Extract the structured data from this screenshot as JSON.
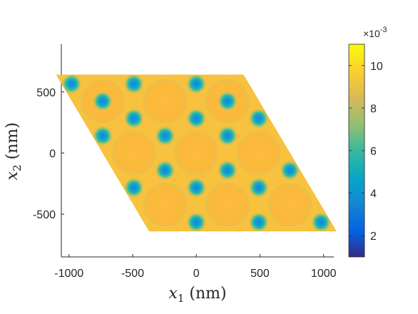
{
  "chart_data": {
    "type": "heatmap",
    "domain_shape": "rhombus (hexagonal unit cell)",
    "colormap": "parula",
    "grid": false,
    "x": {
      "label_var": "x",
      "label_sub": "1",
      "label_unit": "(nm)",
      "lim": [
        -1060,
        1080
      ],
      "ticks": [
        -1000,
        -500,
        0,
        500,
        1000
      ],
      "tick_labels": [
        "-1000",
        "-500",
        "0",
        "500",
        "1000"
      ]
    },
    "y": {
      "label_var": "x",
      "label_sub": "2",
      "label_unit": "(nm)",
      "lim": [
        -850,
        890
      ],
      "ticks": [
        -500,
        0,
        500
      ],
      "tick_labels": [
        "-500",
        "0",
        "500"
      ]
    },
    "colorbar": {
      "location": "right",
      "lim": [
        0.001,
        0.011
      ],
      "ticks": [
        0.002,
        0.004,
        0.006,
        0.008,
        0.01
      ],
      "tick_labels": [
        "2",
        "4",
        "6",
        "8",
        "10"
      ],
      "exponent_label": "×10",
      "exponent_power": "-3"
    },
    "field": {
      "background_value": 0.0098,
      "circle_value": 0.0093,
      "circle_radius": 170,
      "lattice_a1": [
        490,
        0
      ],
      "lattice_a2": [
        245,
        424
      ],
      "vertices": [
        [
          -1100,
          640
        ],
        [
          370,
          640
        ],
        [
          1100,
          -640
        ],
        [
          -370,
          -640
        ]
      ],
      "circle_centers": [
        [
          -735,
          424
        ],
        [
          -245,
          424
        ],
        [
          245,
          424
        ],
        [
          -490,
          0
        ],
        [
          0,
          0
        ],
        [
          490,
          0
        ],
        [
          -245,
          -424
        ],
        [
          245,
          -424
        ],
        [
          735,
          -424
        ]
      ],
      "hotspots": [
        {
          "x": -980,
          "y": 566,
          "value": 0.0045
        },
        {
          "x": -490,
          "y": 566,
          "value": 0.0045
        },
        {
          "x": 0,
          "y": 566,
          "value": 0.0045
        },
        {
          "x": 490,
          "y": 566,
          "value": 0.0045
        },
        {
          "x": -490,
          "y": 283,
          "value": 0.0045
        },
        {
          "x": 0,
          "y": 283,
          "value": 0.0045
        },
        {
          "x": 490,
          "y": 283,
          "value": 0.0045
        },
        {
          "x": -735,
          "y": 141,
          "value": 0.0045
        },
        {
          "x": -245,
          "y": 141,
          "value": 0.0045
        },
        {
          "x": 245,
          "y": 141,
          "value": 0.0045
        },
        {
          "x": -245,
          "y": -141,
          "value": 0.0045
        },
        {
          "x": 245,
          "y": -141,
          "value": 0.0045
        },
        {
          "x": 735,
          "y": -141,
          "value": 0.0045
        },
        {
          "x": -490,
          "y": -283,
          "value": 0.0045
        },
        {
          "x": 0,
          "y": -283,
          "value": 0.0045
        },
        {
          "x": 490,
          "y": -283,
          "value": 0.0045
        },
        {
          "x": -490,
          "y": -566,
          "value": 0.0045
        },
        {
          "x": 0,
          "y": -566,
          "value": 0.0045
        },
        {
          "x": 490,
          "y": -566,
          "value": 0.0045
        },
        {
          "x": 980,
          "y": -566,
          "value": 0.0045
        },
        {
          "x": -735,
          "y": 424,
          "value": 0.0045
        },
        {
          "x": 245,
          "y": 424,
          "value": 0.0045
        }
      ],
      "hotspot_radius": 55
    }
  }
}
